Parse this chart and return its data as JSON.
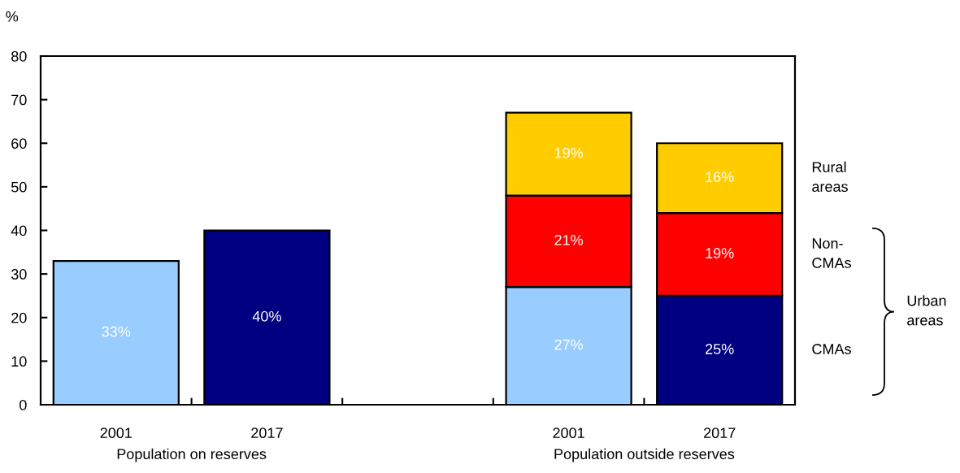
{
  "chart_data": {
    "type": "bar",
    "stacked": true,
    "categories": [
      "2001",
      "2017",
      null,
      "2001",
      "2017"
    ],
    "series": [
      {
        "values": [
          33,
          40,
          null,
          null,
          null
        ],
        "colors": [
          "#99ccff",
          "#000080",
          null,
          null,
          null
        ],
        "value_labels": [
          "33%",
          "40%",
          null,
          null,
          null
        ]
      },
      {
        "name": "CMAs",
        "values": [
          null,
          null,
          null,
          27,
          25
        ],
        "colors": [
          null,
          null,
          null,
          "#99ccff",
          "#000080"
        ],
        "value_labels": [
          null,
          null,
          null,
          "27%",
          "25%"
        ]
      },
      {
        "name": "Non-CMAs",
        "color": "#ff0000",
        "values": [
          null,
          null,
          null,
          21,
          19
        ],
        "value_labels": [
          null,
          null,
          null,
          "21%",
          "19%"
        ]
      },
      {
        "name": "Rural areas",
        "color": "#ffcc00",
        "values": [
          null,
          null,
          null,
          19,
          16
        ],
        "value_labels": [
          null,
          null,
          null,
          "19%",
          "16%"
        ]
      }
    ],
    "ylabel": "%",
    "ylim": [
      0,
      80
    ],
    "yticks": [
      0,
      10,
      20,
      30,
      40,
      50,
      60,
      70,
      80
    ],
    "grid": false,
    "annotations": [
      "Population on reserves",
      "Population outside reserves",
      "Urban areas"
    ]
  }
}
